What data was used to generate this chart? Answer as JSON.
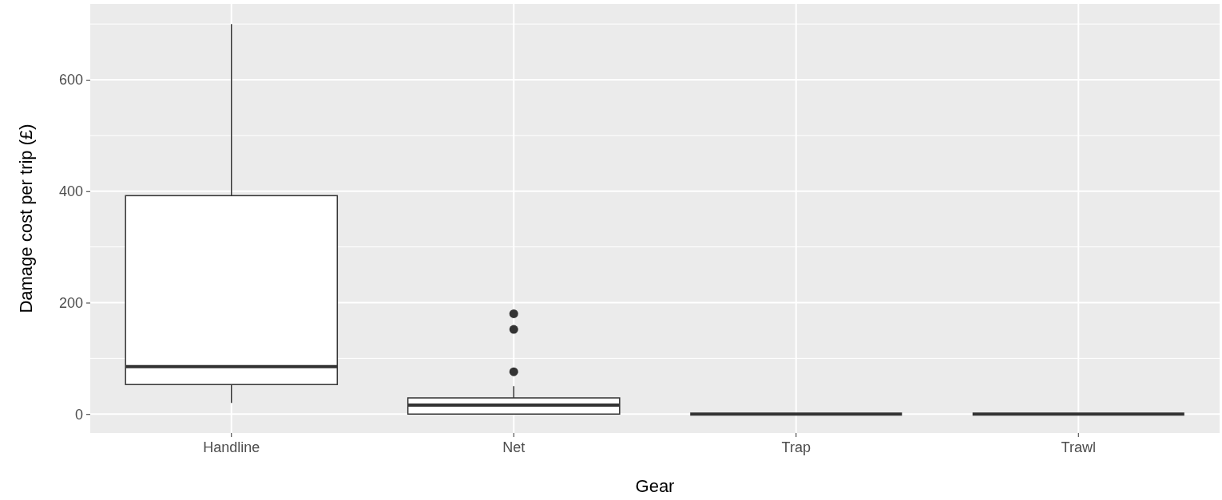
{
  "chart_data": {
    "type": "box",
    "xlabel": "Gear",
    "ylabel": "Damage cost per trip (£)",
    "categories": [
      "Handline",
      "Net",
      "Trap",
      "Trawl"
    ],
    "boxes": [
      {
        "low": 20,
        "q1": 53,
        "median": 85,
        "q3": 392,
        "high": 700
      },
      {
        "low": 0,
        "q1": 0,
        "median": 16,
        "q3": 29,
        "high": 50,
        "outliers": [
          180,
          152,
          76
        ]
      },
      {
        "low": 0,
        "q1": 0,
        "median": 0,
        "q3": 0,
        "high": 0
      },
      {
        "low": 0,
        "q1": 0,
        "median": 0,
        "q3": 0,
        "high": 0
      }
    ],
    "ylim": [
      -34,
      736
    ],
    "yticks": [
      0,
      {
        "value": 100,
        "label": null
      },
      200,
      {
        "value": 300,
        "label": null
      },
      400,
      {
        "value": 500,
        "label": null
      },
      600,
      {
        "value": 700,
        "label": null
      }
    ],
    "grid": true
  }
}
